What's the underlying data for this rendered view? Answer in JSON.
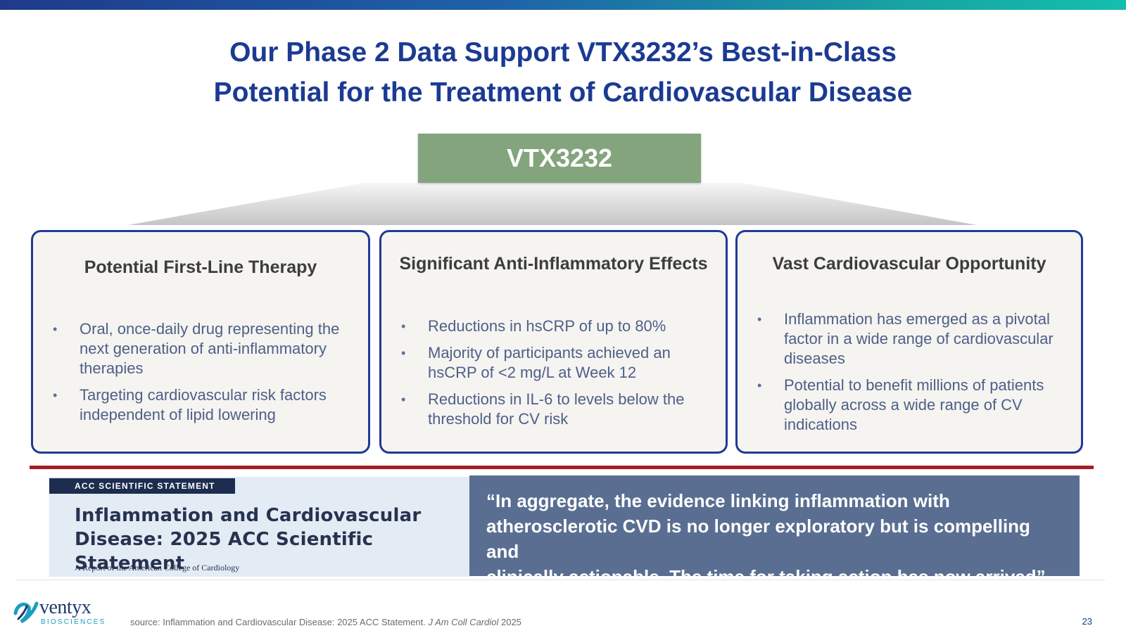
{
  "slide": {
    "title_line1": "Our Phase 2 Data Support VTX3232’s Best-in-Class",
    "title_line2": "Potential for the Treatment of Cardiovascular Disease",
    "product_label": "VTX3232",
    "page_number": "23"
  },
  "cards": [
    {
      "heading": "Potential First-Line Therapy",
      "bullets": [
        "Oral, once-daily drug representing the next generation of anti-inflammatory therapies",
        "Targeting cardiovascular risk factors independent of lipid lowering"
      ]
    },
    {
      "heading": "Significant Anti-Inflammatory Effects",
      "bullets": [
        "Reductions in hsCRP of up to 80%",
        "Majority of participants achieved an hsCRP of <2 mg/L at Week 12",
        "Reductions in IL-6 to levels below the threshold for CV risk"
      ]
    },
    {
      "heading": "Vast Cardiovascular Opportunity",
      "bullets": [
        "Inflammation has emerged as a pivotal factor in a wide range of cardiovascular diseases",
        "Potential to benefit millions of patients globally across a wide range of CV indications"
      ]
    }
  ],
  "acc_statement": {
    "tag": "ACC SCIENTIFIC STATEMENT",
    "title_line1": "Inflammation and Cardiovascular",
    "title_line2": "Disease: 2025 ACC Scientific Statement",
    "subtitle": "A Report of the American College of Cardiology"
  },
  "quote": {
    "line1": "“In aggregate, the evidence linking inflammation with",
    "line2": "atherosclerotic CVD is no longer exploratory but is compelling and",
    "line3": "clinically actionable. The time for taking action has now arrived”"
  },
  "footer": {
    "logo_word": "ventyx",
    "logo_sub": "BIOSCIENCES",
    "logo_icon": "ventyx-swirl-icon",
    "source_prefix": "source: Inflammation and Cardiovascular Disease: 2025 ACC Statement. ",
    "source_journal": "J Am Coll Cardiol",
    "source_year": " 2025"
  },
  "colors": {
    "title_blue": "#1b3a93",
    "product_green": "#83a47d",
    "card_border": "#213a96",
    "divider_red": "#a51d24",
    "quote_panel": "#5a6e92"
  }
}
